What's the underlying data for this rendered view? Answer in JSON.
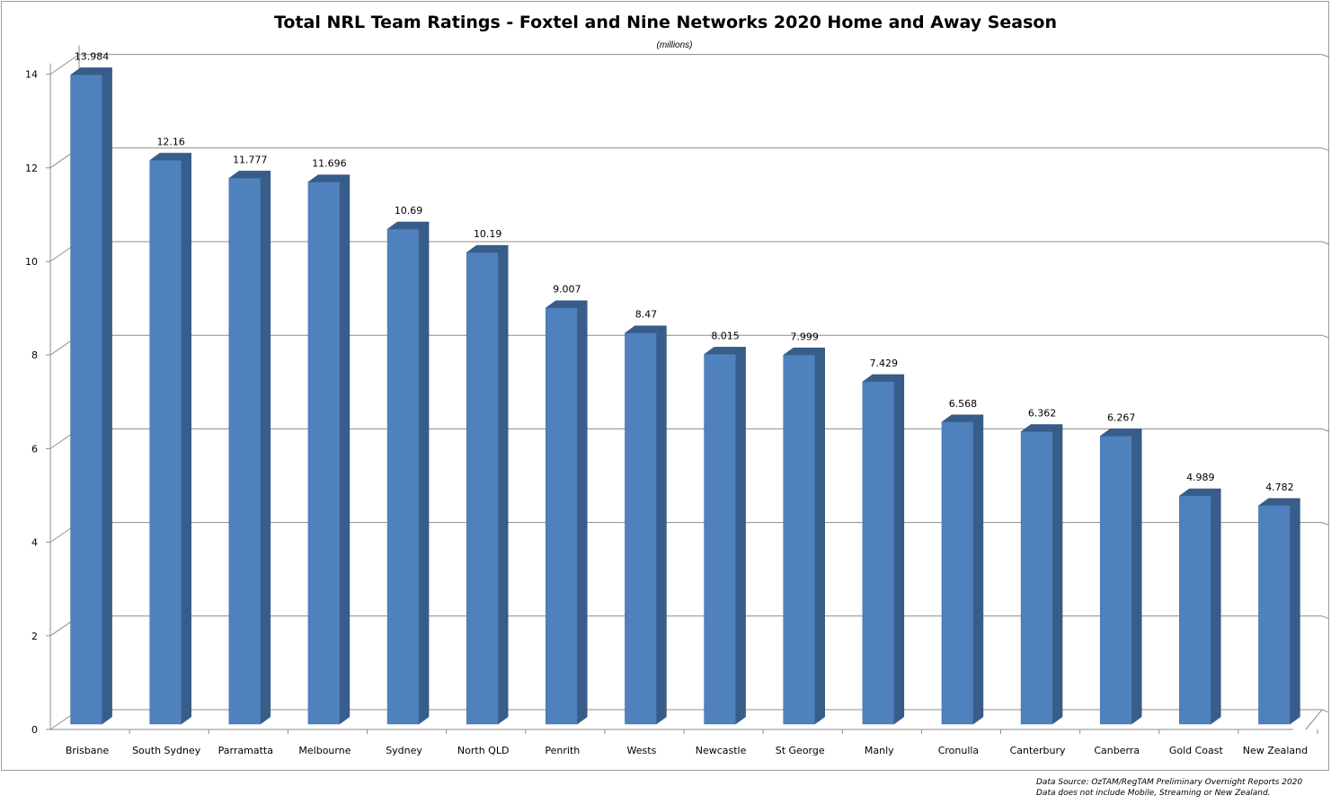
{
  "chart_data": {
    "type": "bar",
    "title": "Total  NRL Team Ratings - Foxtel and Nine Networks 2020 Home and Away Season",
    "subtitle": "(millions)",
    "categories": [
      "Brisbane",
      "South Sydney",
      "Parramatta",
      "Melbourne",
      "Sydney",
      "North QLD",
      "Penrith",
      "Wests",
      "Newcastle",
      "St George",
      "Manly",
      "Cronulla",
      "Canterbury",
      "Canberra",
      "Gold Coast",
      "New Zealand"
    ],
    "values": [
      13.984,
      12.16,
      11.777,
      11.696,
      10.69,
      10.19,
      9.007,
      8.47,
      8.015,
      7.999,
      7.429,
      6.568,
      6.362,
      6.267,
      4.989,
      4.782
    ],
    "value_labels": [
      "13.984",
      "12.16",
      "11.777",
      "11.696",
      "10.69",
      "10.19",
      "9.007",
      "8.47",
      "8.015",
      "7.999",
      "7.429",
      "6.568",
      "6.362",
      "6.267",
      "4.989",
      "4.782"
    ],
    "y_ticks": [
      "0",
      "2",
      "4",
      "6",
      "8",
      "10",
      "12",
      "14"
    ],
    "ylim": [
      0,
      14
    ],
    "grid": true,
    "legend": "none",
    "style": "3d-column",
    "colors": {
      "front": "#4f81bd",
      "side": "#385d8a",
      "top": "#385d8a"
    }
  },
  "footnote": {
    "line1": "Data Source: OzTAM/RegTAM Preliminary Overnight Reports 2020",
    "line2": "Data does not include Mobile, Streaming or New Zealand."
  }
}
